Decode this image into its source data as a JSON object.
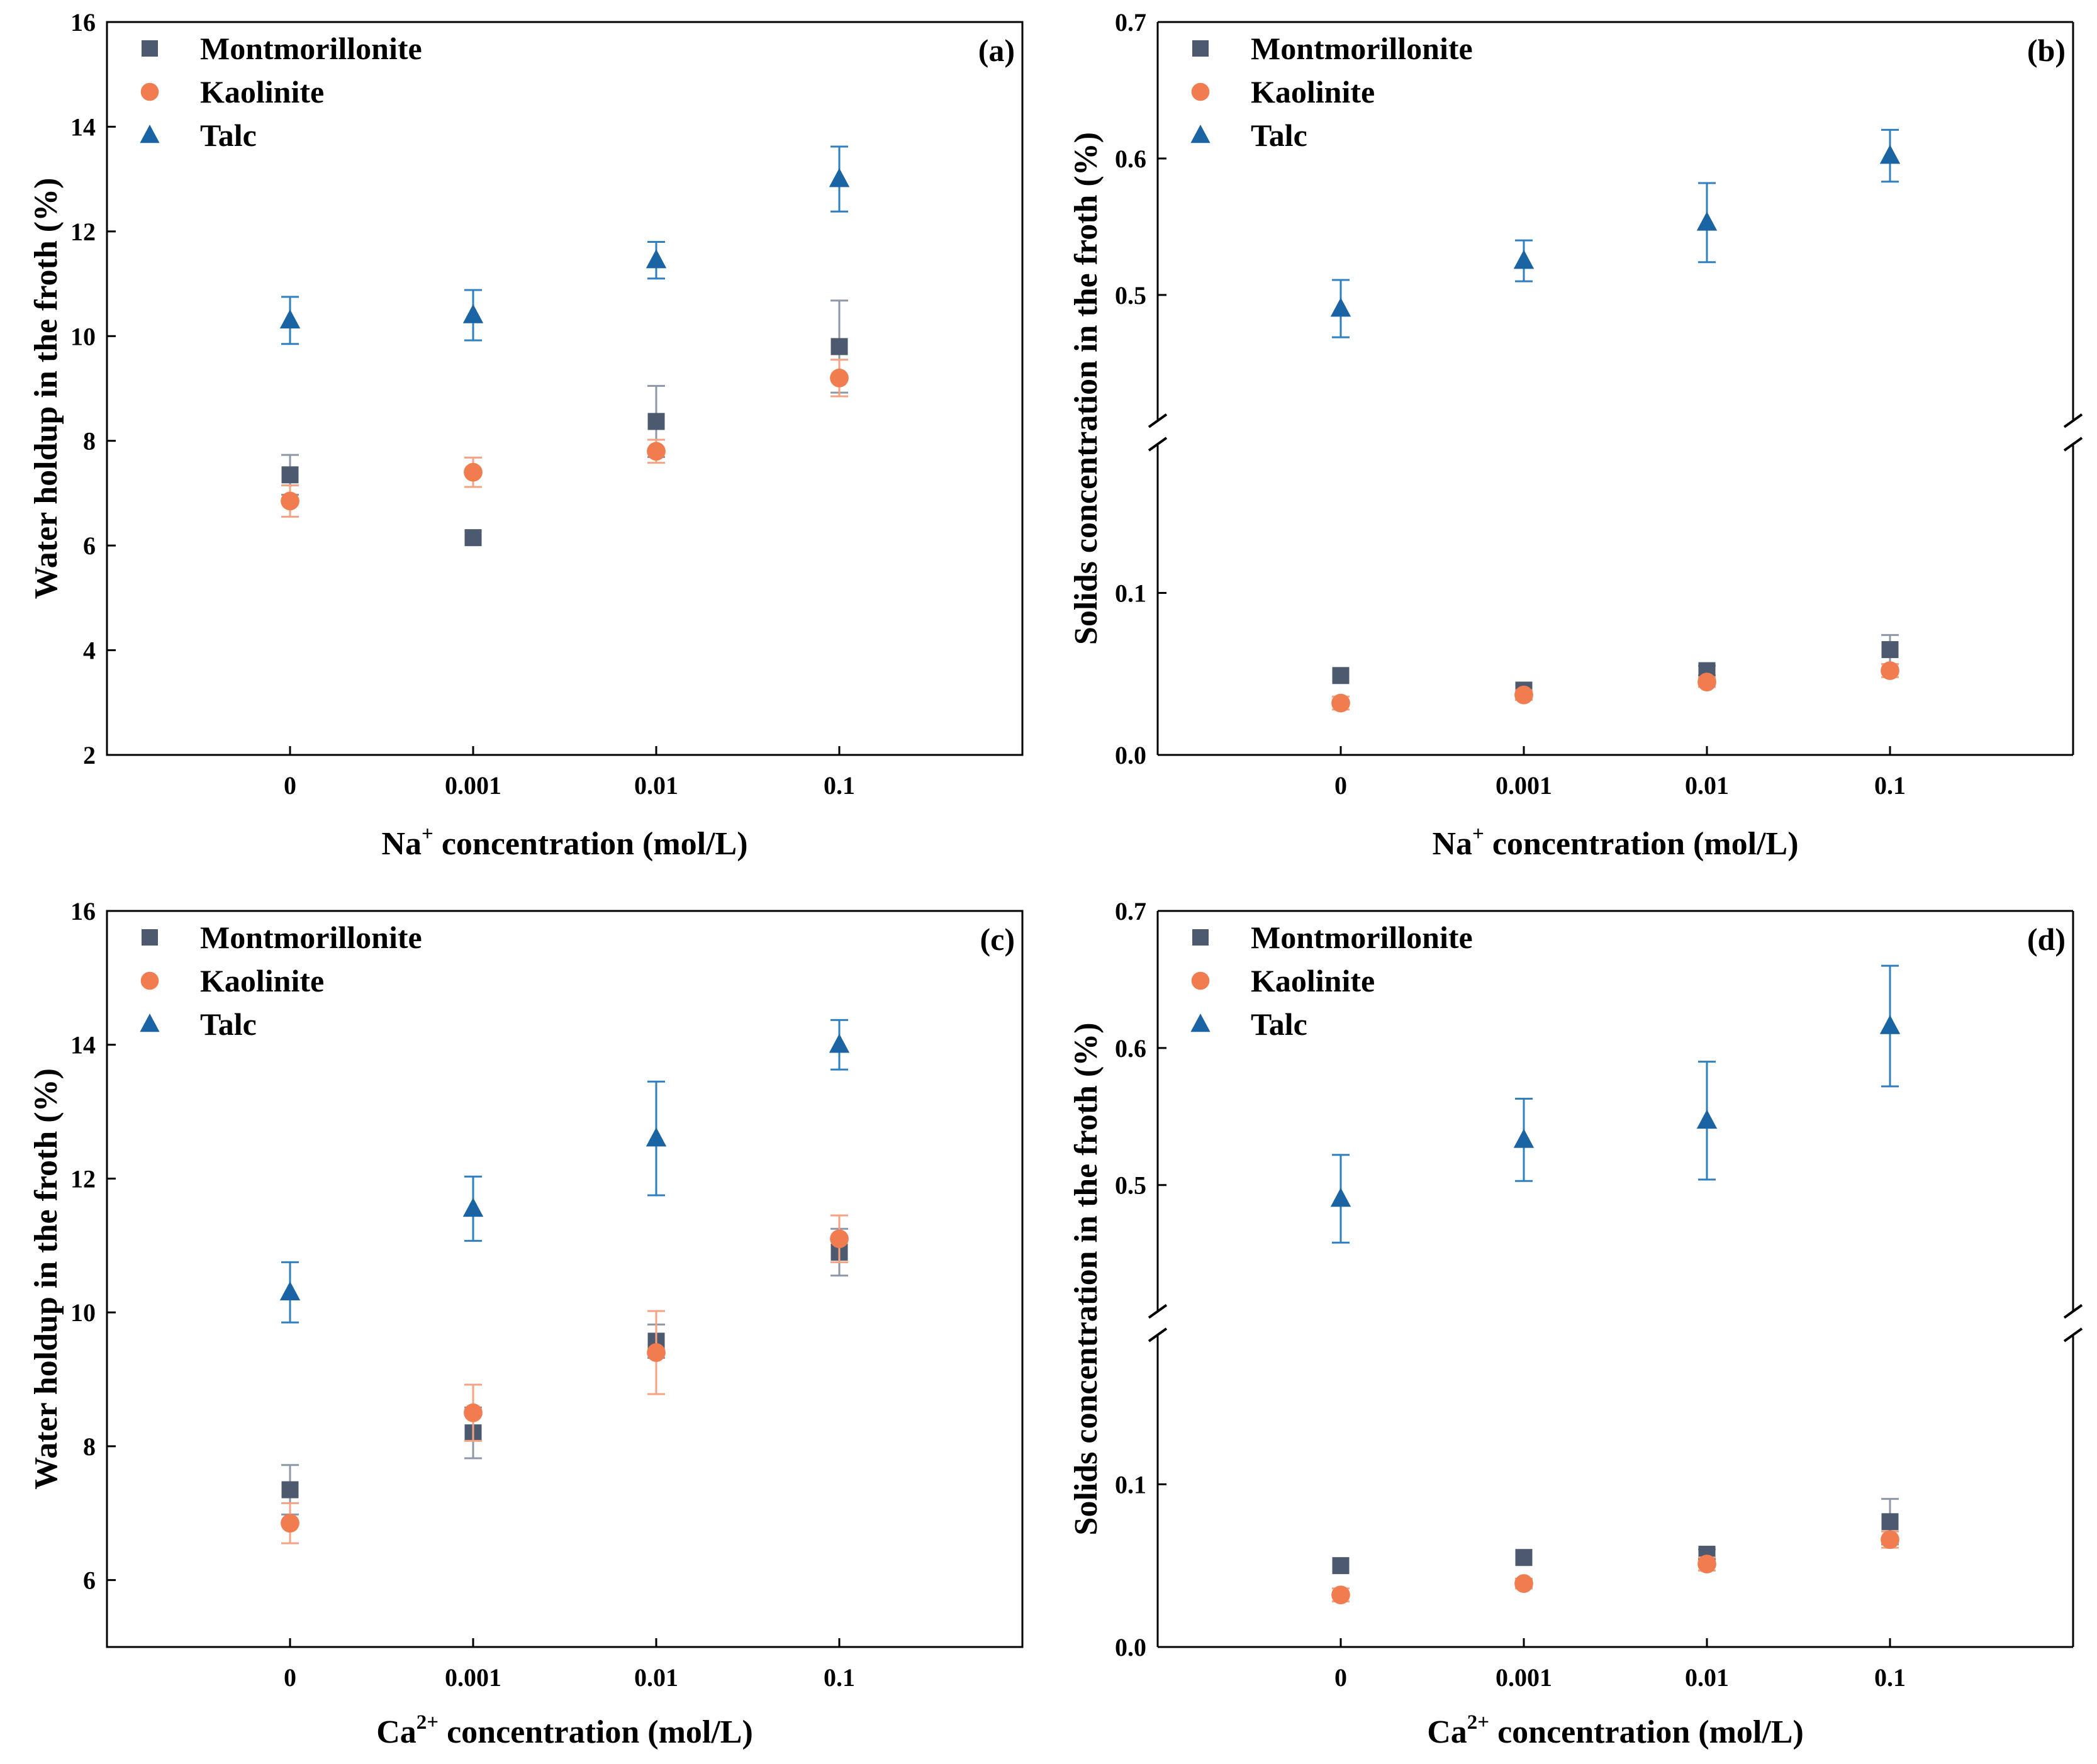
{
  "colors": {
    "montmorillonite": "#4d596e",
    "montmorillonite_err": "#8d97a8",
    "kaolinite": "#f07c50",
    "kaolinite_err": "#f5a283",
    "talc": "#1b64a3",
    "talc_err": "#2f7fc1",
    "axis": "#000000"
  },
  "legend_icons": {
    "montmorillonite": "square-marker-icon",
    "kaolinite": "circle-marker-icon",
    "talc": "triangle-marker-icon"
  },
  "chart_data": [
    {
      "id": "a",
      "type": "scatter",
      "panel_label": "(a)",
      "xlabel_main": "Na",
      "xlabel_sup": "+",
      "xlabel_rest": " concentration (mol/L)",
      "ylabel": "Water holdup in the froth (%)",
      "categories": [
        "0",
        "0.001",
        "0.01",
        "0.1"
      ],
      "ylim": [
        2,
        16
      ],
      "yticks": [
        "2",
        "4",
        "6",
        "8",
        "10",
        "12",
        "14",
        "16"
      ],
      "ybreak": null,
      "legend_position": "top-left",
      "series": [
        {
          "name": "Montmorillonite",
          "marker": "square",
          "values": [
            7.35,
            6.15,
            8.37,
            9.8
          ],
          "errors": [
            0.38,
            0.0,
            0.68,
            0.88
          ]
        },
        {
          "name": "Kaolinite",
          "marker": "circle",
          "values": [
            6.85,
            7.4,
            7.8,
            9.2
          ],
          "errors": [
            0.3,
            0.28,
            0.22,
            0.35
          ]
        },
        {
          "name": "Talc",
          "marker": "triangle",
          "values": [
            10.3,
            10.4,
            11.45,
            13.0
          ],
          "errors": [
            0.45,
            0.48,
            0.35,
            0.62
          ]
        }
      ]
    },
    {
      "id": "b",
      "type": "scatter",
      "panel_label": "(b)",
      "xlabel_main": "Na",
      "xlabel_sup": "+",
      "xlabel_rest": " concentration (mol/L)",
      "ylabel": "Solids concentration in the froth (%)",
      "categories": [
        "0",
        "0.001",
        "0.01",
        "0.1"
      ],
      "ylim": [
        0.0,
        0.7
      ],
      "yticks": [
        "0.0",
        "0.1",
        "0.5",
        "0.6",
        "0.7"
      ],
      "ybreak": [
        0.19,
        0.41
      ],
      "legend_position": "top-left",
      "series": [
        {
          "name": "Montmorillonite",
          "marker": "square",
          "values": [
            0.049,
            0.04,
            0.052,
            0.065
          ],
          "errors": [
            0.0,
            0.0,
            0.003,
            0.009
          ]
        },
        {
          "name": "Kaolinite",
          "marker": "circle",
          "values": [
            0.032,
            0.037,
            0.045,
            0.052
          ],
          "errors": [
            0.004,
            0.003,
            0.003,
            0.004
          ]
        },
        {
          "name": "Talc",
          "marker": "triangle",
          "values": [
            0.49,
            0.525,
            0.553,
            0.602
          ],
          "errors": [
            0.021,
            0.015,
            0.029,
            0.019
          ]
        }
      ]
    },
    {
      "id": "c",
      "type": "scatter",
      "panel_label": "(c)",
      "xlabel_main": "Ca",
      "xlabel_sup": "2+",
      "xlabel_rest": " concentration (mol/L)",
      "ylabel": "Water holdup in the froth (%)",
      "categories": [
        "0",
        "0.001",
        "0.01",
        "0.1"
      ],
      "ylim": [
        5,
        16
      ],
      "yticks": [
        "6",
        "8",
        "10",
        "12",
        "14",
        "16"
      ],
      "ybreak": null,
      "legend_position": "top-left",
      "series": [
        {
          "name": "Montmorillonite",
          "marker": "square",
          "values": [
            7.35,
            8.2,
            9.57,
            10.9
          ],
          "errors": [
            0.37,
            0.38,
            0.25,
            0.35
          ]
        },
        {
          "name": "Kaolinite",
          "marker": "circle",
          "values": [
            6.85,
            8.5,
            9.4,
            11.1
          ],
          "errors": [
            0.3,
            0.42,
            0.62,
            0.35
          ]
        },
        {
          "name": "Talc",
          "marker": "triangle",
          "values": [
            10.3,
            11.55,
            12.6,
            14.0
          ],
          "errors": [
            0.45,
            0.48,
            0.85,
            0.37
          ]
        }
      ]
    },
    {
      "id": "d",
      "type": "scatter",
      "panel_label": "(d)",
      "xlabel_main": "Ca",
      "xlabel_sup": "2+",
      "xlabel_rest": " concentration (mol/L)",
      "ylabel": "Solids concentration in the froth (%)",
      "categories": [
        "0",
        "0.001",
        "0.01",
        "0.1"
      ],
      "ylim": [
        0.0,
        0.7
      ],
      "yticks": [
        "0.0",
        "0.1",
        "0.5",
        "0.6",
        "0.7"
      ],
      "ybreak": [
        0.19,
        0.41
      ],
      "legend_position": "top-left",
      "series": [
        {
          "name": "Montmorillonite",
          "marker": "square",
          "values": [
            0.05,
            0.055,
            0.057,
            0.077
          ],
          "errors": [
            0.0,
            0.0,
            0.003,
            0.014
          ]
        },
        {
          "name": "Kaolinite",
          "marker": "circle",
          "values": [
            0.032,
            0.039,
            0.051,
            0.066
          ],
          "errors": [
            0.004,
            0.003,
            0.004,
            0.005
          ]
        },
        {
          "name": "Talc",
          "marker": "triangle",
          "values": [
            0.49,
            0.533,
            0.547,
            0.616
          ],
          "errors": [
            0.032,
            0.03,
            0.043,
            0.044
          ]
        }
      ]
    }
  ]
}
